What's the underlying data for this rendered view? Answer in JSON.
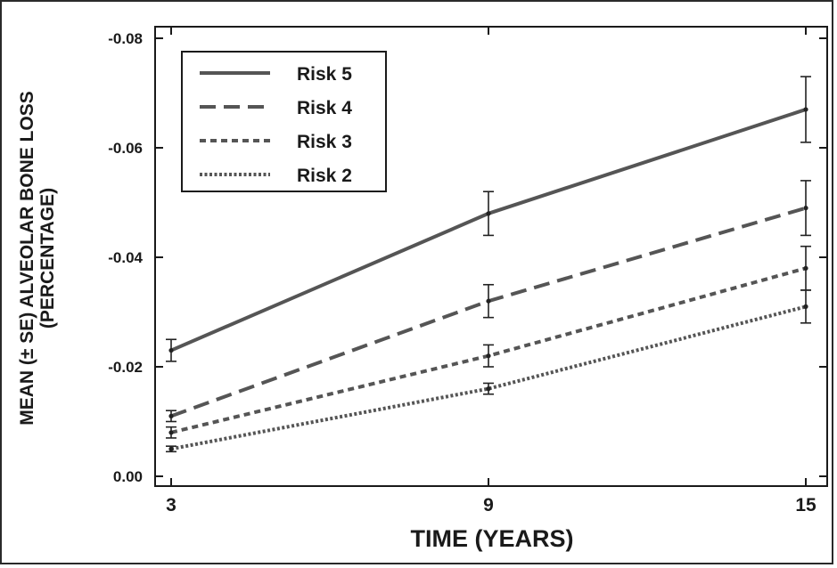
{
  "chart_data": {
    "type": "line",
    "xlabel": "TIME (YEARS)",
    "ylabel_line1": "MEAN (± SE) ALVEOLAR BONE LOSS",
    "ylabel_line2": "(PERCENTAGE)",
    "x_ticks": [
      3,
      9,
      15
    ],
    "x_tick_labels": [
      "3",
      "9",
      "15"
    ],
    "y_ticks": [
      0,
      -0.02,
      -0.04,
      -0.06,
      -0.08
    ],
    "y_tick_labels": [
      "0.00",
      "-0.02",
      "-0.04",
      "-0.06",
      "-0.08"
    ],
    "xlim": [
      3,
      15
    ],
    "ylim": [
      0,
      -0.08
    ],
    "grid": false,
    "legend_position": "top-left",
    "series": [
      {
        "name": "Risk 5",
        "style": "solid",
        "color": "#555555",
        "x": [
          3,
          9,
          15
        ],
        "y": [
          -0.023,
          -0.048,
          -0.067
        ],
        "se_low": [
          -0.021,
          -0.044,
          -0.061
        ],
        "se_high": [
          -0.025,
          -0.052,
          -0.073
        ]
      },
      {
        "name": "Risk 4",
        "style": "dashed",
        "color": "#555555",
        "x": [
          3,
          9,
          15
        ],
        "y": [
          -0.011,
          -0.032,
          -0.049
        ],
        "se_low": [
          -0.01,
          -0.029,
          -0.044
        ],
        "se_high": [
          -0.012,
          -0.035,
          -0.054
        ]
      },
      {
        "name": "Risk 3",
        "style": "short-dashed",
        "color": "#555555",
        "x": [
          3,
          9,
          15
        ],
        "y": [
          -0.008,
          -0.022,
          -0.038
        ],
        "se_low": [
          -0.007,
          -0.02,
          -0.034
        ],
        "se_high": [
          -0.009,
          -0.024,
          -0.042
        ]
      },
      {
        "name": "Risk 2",
        "style": "dotted",
        "color": "#555555",
        "x": [
          3,
          9,
          15
        ],
        "y": [
          -0.005,
          -0.016,
          -0.031
        ],
        "se_low": [
          -0.0045,
          -0.015,
          -0.028
        ],
        "se_high": [
          -0.0055,
          -0.017,
          -0.034
        ]
      }
    ]
  }
}
